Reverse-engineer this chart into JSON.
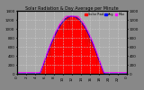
{
  "title": "Solar Radiation & Day Average per Minute",
  "bg_color": "#888888",
  "plot_bg": "#aaaaaa",
  "grid_color": "#cccccc",
  "fill_color": "#ff0000",
  "line_color": "#dd0000",
  "avg_line_color": "#0000ff",
  "max_line_color": "#ff00ff",
  "legend_labels": [
    "Solar Rad",
    "Avg",
    "Max"
  ],
  "legend_colors": [
    "#ff0000",
    "#0000ff",
    "#ff00ff"
  ],
  "ylim": [
    0,
    1400
  ],
  "xlim": [
    0,
    1440
  ],
  "yticks_left": [
    0,
    200,
    400,
    600,
    800,
    1000,
    1200,
    1400
  ],
  "yticks_right": [
    0,
    200,
    400,
    600,
    800,
    1000,
    1200,
    1400
  ],
  "xtick_labels": [
    "0",
    "2",
    "4",
    "6",
    "8",
    "10",
    "12",
    "14",
    "16",
    "18",
    "20",
    "22",
    "0"
  ],
  "num_points": 1440,
  "peak_value": 1280,
  "sunrise": 300,
  "sunset": 1140
}
